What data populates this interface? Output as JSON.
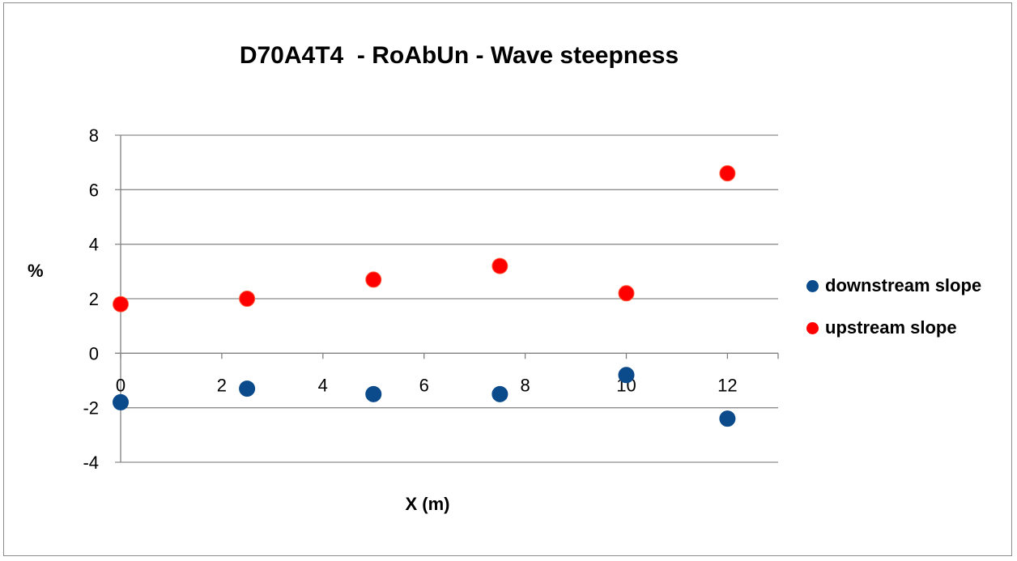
{
  "chart_data": {
    "type": "scatter",
    "title": "D70A4T4  - RoAbUn - Wave steepness",
    "xlabel": "X (m)",
    "ylabel": "%",
    "xlim": [
      0,
      13
    ],
    "ylim": [
      -4,
      8
    ],
    "x_ticks": [
      "0",
      "2",
      "4",
      "6",
      "8",
      "10",
      "12"
    ],
    "y_ticks": [
      "8",
      "6",
      "4",
      "2",
      "0",
      "-2",
      "-4"
    ],
    "grid": "horizontal",
    "legend_position": "right",
    "series": [
      {
        "name": "downstream slope",
        "color": "#0b4a8b",
        "points": [
          {
            "x": 0,
            "y": -1.8
          },
          {
            "x": 2.5,
            "y": -1.3
          },
          {
            "x": 5,
            "y": -1.5
          },
          {
            "x": 7.5,
            "y": -1.5
          },
          {
            "x": 10,
            "y": -0.8
          },
          {
            "x": 12,
            "y": -2.4
          }
        ]
      },
      {
        "name": "upstream slope",
        "color": "#ff0000",
        "points": [
          {
            "x": 0,
            "y": 1.8
          },
          {
            "x": 2.5,
            "y": 2.0
          },
          {
            "x": 5,
            "y": 2.7
          },
          {
            "x": 7.5,
            "y": 3.2
          },
          {
            "x": 10,
            "y": 2.2
          },
          {
            "x": 12,
            "y": 6.6
          }
        ]
      }
    ]
  }
}
